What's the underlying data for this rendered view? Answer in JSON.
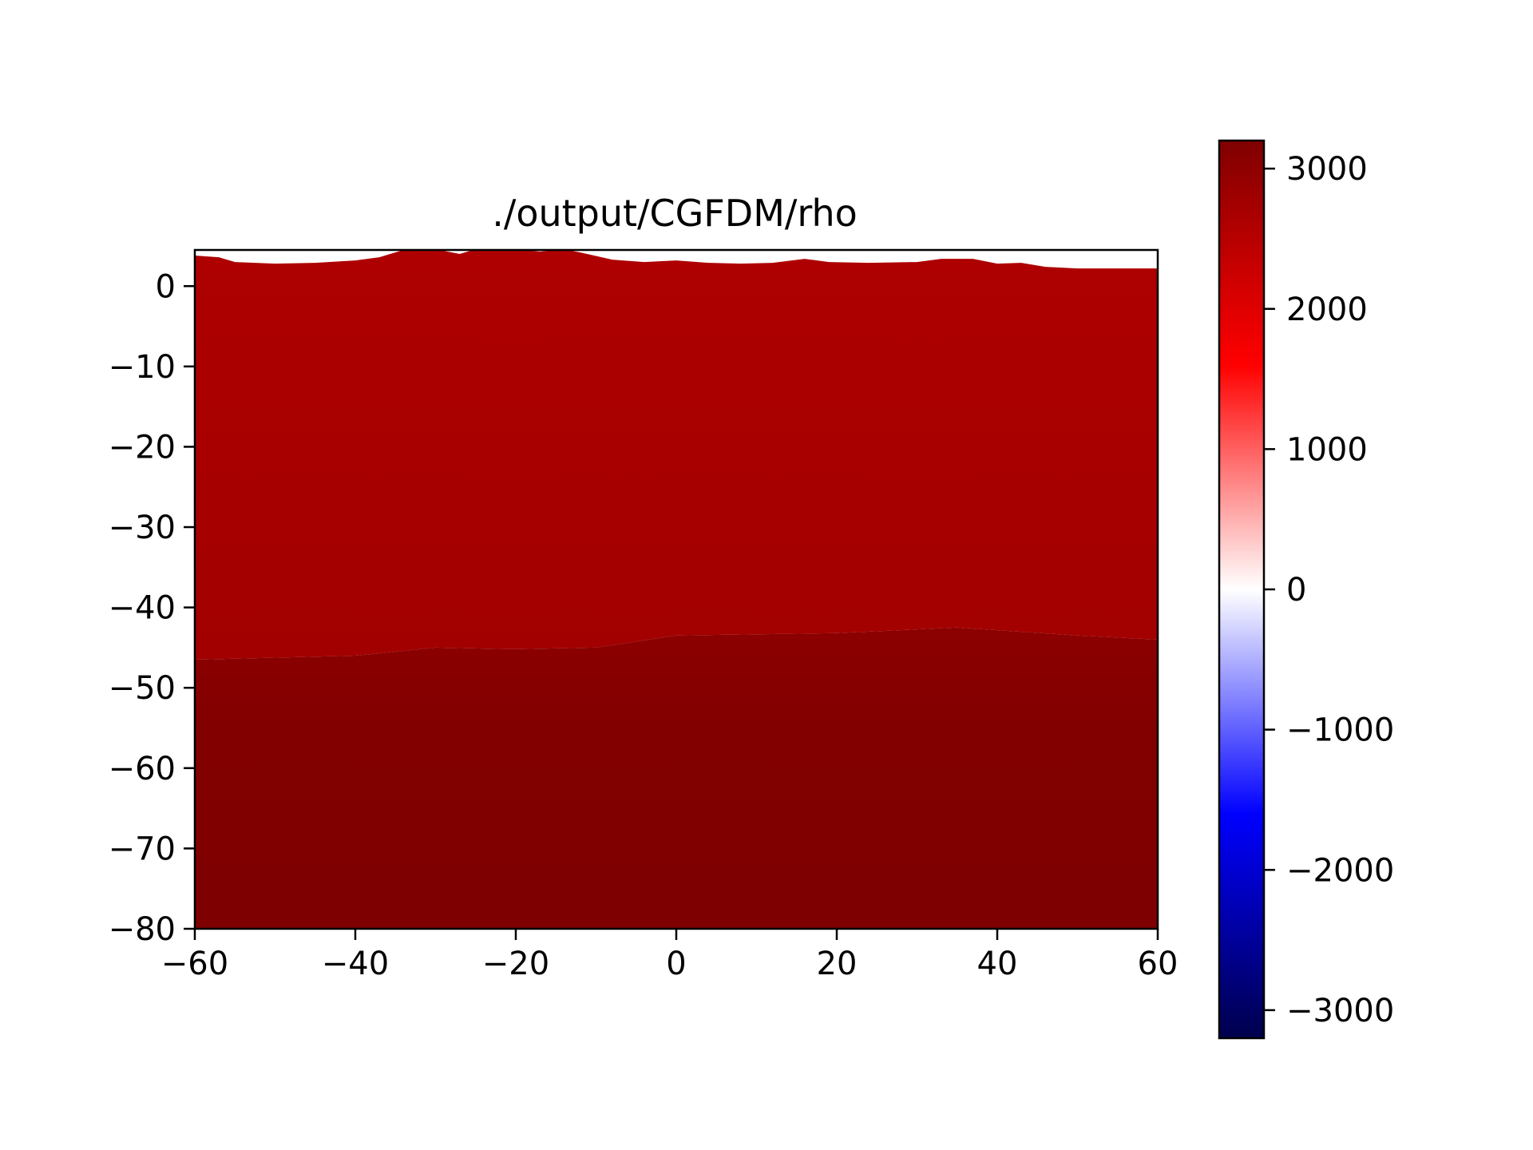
{
  "chart_data": {
    "type": "heatmap",
    "title": "./output/CGFDM/rho",
    "xlabel": "",
    "ylabel": "",
    "xlim": [
      -60,
      60
    ],
    "ylim": [
      -80,
      4.5
    ],
    "x_ticks": [
      {
        "value": -60,
        "label": "−60"
      },
      {
        "value": -40,
        "label": "−40"
      },
      {
        "value": -20,
        "label": "−20"
      },
      {
        "value": 0,
        "label": "0"
      },
      {
        "value": 20,
        "label": "20"
      },
      {
        "value": 40,
        "label": "40"
      },
      {
        "value": 60,
        "label": "60"
      }
    ],
    "y_ticks": [
      {
        "value": 0,
        "label": "0"
      },
      {
        "value": -10,
        "label": "−10"
      },
      {
        "value": -20,
        "label": "−20"
      },
      {
        "value": -30,
        "label": "−30"
      },
      {
        "value": -40,
        "label": "−40"
      },
      {
        "value": -50,
        "label": "−50"
      },
      {
        "value": -60,
        "label": "−60"
      },
      {
        "value": -70,
        "label": "−70"
      },
      {
        "value": -80,
        "label": "−80"
      }
    ],
    "grid": false,
    "colormap": "seismic",
    "colorbar": {
      "range": [
        -3200,
        3200
      ],
      "stops": [
        {
          "value": -3200,
          "color": "#00004c"
        },
        {
          "value": -1600,
          "color": "#0000ff"
        },
        {
          "value": 0,
          "color": "#ffffff"
        },
        {
          "value": 1600,
          "color": "#ff0000"
        },
        {
          "value": 3200,
          "color": "#7f0000"
        }
      ],
      "ticks": [
        {
          "value": 3000,
          "label": "3000"
        },
        {
          "value": 2000,
          "label": "2000"
        },
        {
          "value": 1000,
          "label": "1000"
        },
        {
          "value": 0,
          "label": "0"
        },
        {
          "value": -1000,
          "label": "−1000"
        },
        {
          "value": -2000,
          "label": "−2000"
        },
        {
          "value": -3000,
          "label": "−3000"
        }
      ]
    },
    "surface_topography": [
      [
        -60,
        3.8
      ],
      [
        -57,
        3.6
      ],
      [
        -55,
        3.0
      ],
      [
        -50,
        2.8
      ],
      [
        -45,
        2.9
      ],
      [
        -40,
        3.2
      ],
      [
        -37,
        3.6
      ],
      [
        -34,
        4.5
      ],
      [
        -30,
        4.6
      ],
      [
        -27,
        4.0
      ],
      [
        -25,
        4.6
      ],
      [
        -20,
        4.6
      ],
      [
        -17,
        4.3
      ],
      [
        -14,
        4.6
      ],
      [
        -12,
        4.2
      ],
      [
        -8,
        3.3
      ],
      [
        -4,
        3.0
      ],
      [
        0,
        3.2
      ],
      [
        4,
        2.9
      ],
      [
        8,
        2.8
      ],
      [
        12,
        2.9
      ],
      [
        16,
        3.4
      ],
      [
        19,
        3.0
      ],
      [
        24,
        2.9
      ],
      [
        30,
        3.0
      ],
      [
        33,
        3.4
      ],
      [
        37,
        3.4
      ],
      [
        40,
        2.8
      ],
      [
        43,
        2.9
      ],
      [
        46,
        2.4
      ],
      [
        50,
        2.2
      ],
      [
        55,
        2.2
      ],
      [
        60,
        2.2
      ]
    ],
    "layers": [
      {
        "name": "",
        "rho": 2600,
        "color": "#ad0000",
        "boundary": [
          [
            -60,
            -46.5
          ],
          [
            -40,
            -46
          ],
          [
            -30,
            -45
          ],
          [
            -20,
            -45.2
          ],
          [
            -10,
            -45
          ],
          [
            0,
            -43.5
          ],
          [
            20,
            -43.2
          ],
          [
            35,
            -42.5
          ],
          [
            50,
            -43.5
          ],
          [
            60,
            -44
          ]
        ]
      },
      {
        "name": "",
        "rho": 3150,
        "color": "#800000",
        "boundary": [
          [
            -60,
            -80
          ],
          [
            60,
            -80
          ]
        ]
      }
    ]
  }
}
